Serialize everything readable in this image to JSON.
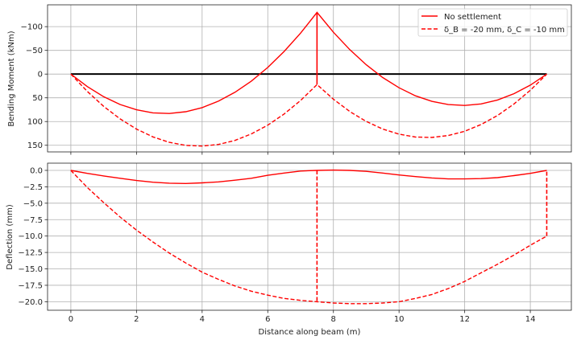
{
  "chart_data": [
    {
      "type": "line",
      "title": "",
      "xlabel": "",
      "ylabel": "Bending Moment (kNm)",
      "xlim": [
        -0.71,
        15.25
      ],
      "ylim": [
        -146,
        164
      ],
      "y_inverted": true,
      "grid": true,
      "legend": "top-right",
      "xticks": [
        0,
        2,
        4,
        6,
        8,
        10,
        12,
        14
      ],
      "yticks": [
        -100,
        -50,
        0,
        50,
        100,
        150
      ],
      "ytick_labels": [
        "−100",
        "−50",
        "0",
        "50",
        "100",
        "150"
      ],
      "baseline": {
        "x": [
          0,
          14.5
        ],
        "y": 0,
        "color": "#000000"
      },
      "series": [
        {
          "name": "No settlement",
          "style": "solid",
          "color": "#ff0000",
          "x": [
            0,
            0.5,
            1,
            1.5,
            2,
            2.5,
            3,
            3.5,
            4,
            4.5,
            5,
            5.5,
            6,
            6.5,
            7,
            7.5,
            8,
            8.5,
            9,
            9.5,
            10,
            10.5,
            11,
            11.5,
            12,
            12.5,
            13,
            13.5,
            14,
            14.5
          ],
          "y": [
            0,
            26.3,
            47.7,
            64,
            75.3,
            81.7,
            83,
            79.3,
            70.7,
            57,
            38.3,
            14.7,
            -14,
            -47.7,
            -86.3,
            -130,
            -88.2,
            -51.4,
            -19.6,
            7.1,
            28.9,
            45.7,
            57.5,
            64.3,
            66.1,
            62.9,
            54.6,
            41.4,
            23.2,
            0
          ],
          "connectors": [
            {
              "x": 7.5,
              "y": [
                -130,
                22
              ]
            }
          ]
        },
        {
          "name": "δ_B = -20 mm, δ_C = -10 mm",
          "style": "dashed",
          "color": "#ff0000",
          "x": [
            0,
            0.5,
            1,
            1.5,
            2,
            2.5,
            3,
            3.5,
            4,
            4.5,
            5,
            5.5,
            6,
            6.5,
            7,
            7.5,
            8,
            8.5,
            9,
            9.5,
            10,
            10.5,
            11,
            11.5,
            12,
            12.5,
            13,
            13.5,
            14,
            14.5
          ],
          "y": [
            0,
            36.5,
            67.9,
            94.4,
            115.9,
            132.3,
            143.8,
            150.3,
            151.7,
            148.2,
            139.7,
            126.1,
            107.6,
            84.1,
            55.5,
            22,
            52.9,
            78.9,
            99.8,
            115.7,
            126.6,
            132.6,
            133.5,
            129.4,
            120.4,
            106.3,
            87.2,
            63.1,
            34.1,
            0
          ],
          "connectors": []
        }
      ]
    },
    {
      "type": "line",
      "title": "",
      "xlabel": "Distance along beam (m)",
      "ylabel": "Deflection (mm)",
      "xlim": [
        -0.71,
        15.25
      ],
      "ylim": [
        -21.3,
        1.1
      ],
      "grid": true,
      "xticks": [
        0,
        2,
        4,
        6,
        8,
        10,
        12,
        14
      ],
      "xtick_labels": [
        "0",
        "2",
        "4",
        "6",
        "8",
        "10",
        "12",
        "14"
      ],
      "yticks": [
        0,
        -2.5,
        -5,
        -7.5,
        -10,
        -12.5,
        -15,
        -17.5,
        -20
      ],
      "ytick_labels": [
        "0.0",
        "−2.5",
        "−5.0",
        "−7.5",
        "−10.0",
        "−12.5",
        "−15.0",
        "−17.5",
        "−20.0"
      ],
      "series": [
        {
          "name": "No settlement",
          "style": "solid",
          "color": "#ff0000",
          "x": [
            0,
            0.5,
            1,
            1.5,
            2,
            2.5,
            3,
            3.5,
            4,
            4.5,
            5,
            5.5,
            6,
            6.5,
            7,
            7.5,
            8,
            8.5,
            9,
            9.5,
            10,
            10.5,
            11,
            11.5,
            12,
            12.5,
            13,
            13.5,
            14,
            14.5
          ],
          "y": [
            0,
            -0.45,
            -0.85,
            -1.2,
            -1.55,
            -1.8,
            -1.95,
            -2.0,
            -1.9,
            -1.75,
            -1.5,
            -1.2,
            -0.75,
            -0.4,
            -0.1,
            0,
            0.05,
            0,
            -0.15,
            -0.4,
            -0.7,
            -0.95,
            -1.15,
            -1.3,
            -1.3,
            -1.25,
            -1.1,
            -0.8,
            -0.45,
            0
          ],
          "connectors": []
        },
        {
          "name": "δ_B = -20 mm, δ_C = -10 mm",
          "style": "dashed",
          "color": "#ff0000",
          "x": [
            0,
            0.5,
            1,
            1.5,
            2,
            2.5,
            3,
            3.5,
            4,
            4.5,
            5,
            5.5,
            6,
            6.5,
            7,
            7.5,
            8,
            8.5,
            9,
            9.5,
            10,
            10.5,
            11,
            11.5,
            12,
            12.5,
            13,
            13.5,
            14,
            14.5
          ],
          "y": [
            0,
            -2.6,
            -4.9,
            -7.1,
            -9.1,
            -10.9,
            -12.6,
            -14.1,
            -15.5,
            -16.6,
            -17.6,
            -18.4,
            -19.0,
            -19.5,
            -19.8,
            -20.0,
            -20.2,
            -20.3,
            -20.3,
            -20.2,
            -20.0,
            -19.5,
            -18.9,
            -18.0,
            -16.9,
            -15.6,
            -14.3,
            -12.9,
            -11.4,
            -10.0
          ],
          "connectors": [
            {
              "x": 7.5,
              "y": [
                0,
                -20
              ]
            },
            {
              "x": 14.5,
              "y": [
                -10,
                0
              ]
            }
          ]
        }
      ]
    }
  ]
}
